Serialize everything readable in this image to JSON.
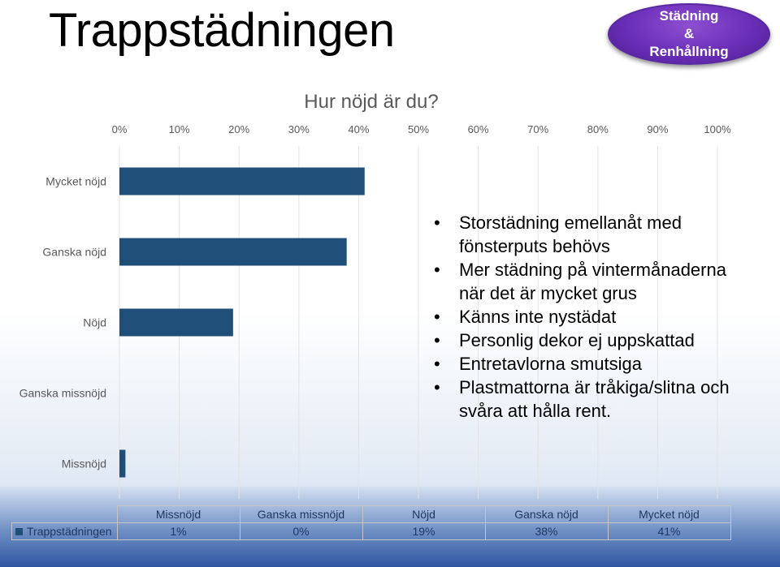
{
  "slide": {
    "title": "Trappstädningen",
    "logo": {
      "line1": "Städning",
      "line2": "&",
      "line3": "Renhållning"
    }
  },
  "bullets": [
    "Storstädning emellanåt med fönsterputs behövs",
    "Mer städning på vintermånaderna när det är mycket grus",
    "Känns inte nystädat",
    "Personlig dekor ej uppskattad",
    "Entretavlorna smutsiga",
    "Plastmattorna är tråkiga/slitna och svåra att hålla rent."
  ],
  "colors": {
    "bar": "#1f4e79",
    "logo": "#6a2eb8"
  },
  "chart_data": {
    "type": "bar",
    "orientation": "horizontal",
    "title": "Hur nöjd är du?",
    "categories": [
      "Mycket nöjd",
      "Ganska nöjd",
      "Nöjd",
      "Ganska missnöjd",
      "Missnöjd"
    ],
    "series": [
      {
        "name": "Trappstädningen",
        "values": [
          41,
          38,
          19,
          0,
          1
        ]
      }
    ],
    "xlim": [
      0,
      100
    ],
    "x_ticks": [
      "0%",
      "10%",
      "20%",
      "30%",
      "40%",
      "50%",
      "60%",
      "70%",
      "80%",
      "90%",
      "100%"
    ],
    "grid": true,
    "data_table": {
      "columns": [
        "Missnöjd",
        "Ganska missnöjd",
        "Nöjd",
        "Ganska nöjd",
        "Mycket nöjd"
      ],
      "row_label": "Trappstädningen",
      "values": [
        "1%",
        "0%",
        "19%",
        "38%",
        "41%"
      ]
    }
  }
}
